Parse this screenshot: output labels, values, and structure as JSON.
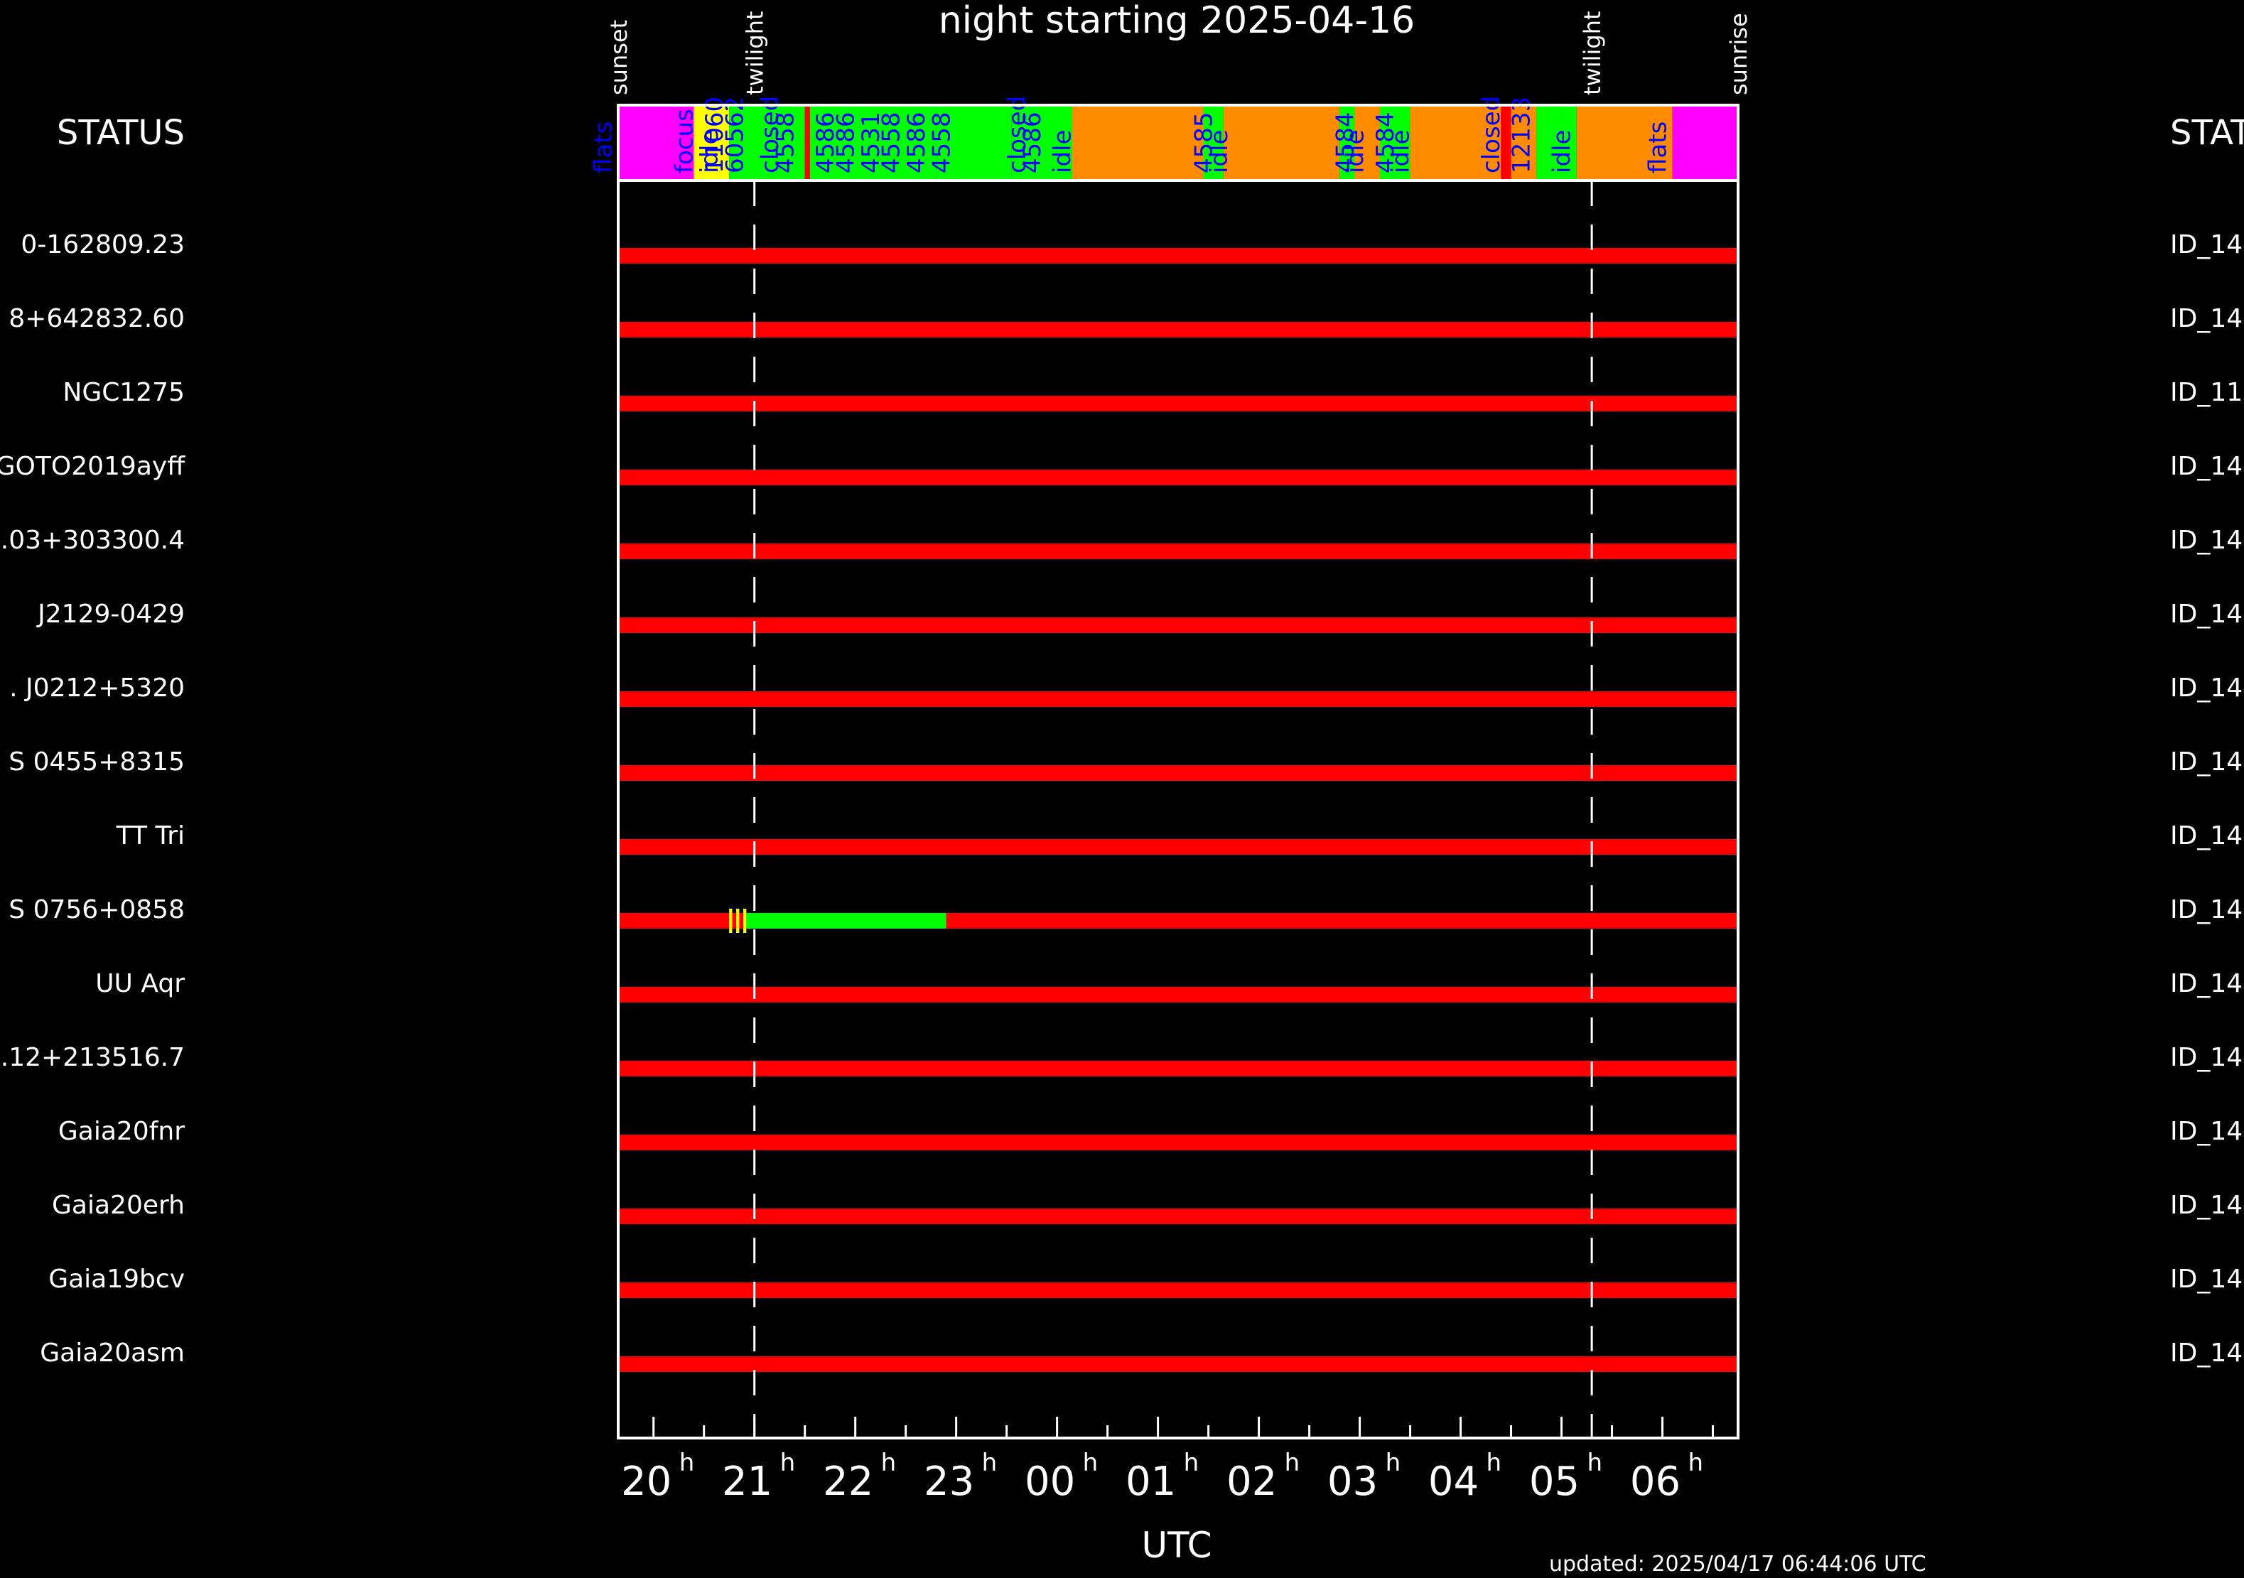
{
  "chart_data": {
    "type": "gantt",
    "title": "night starting 2025-04-16",
    "xlabel": "UTC",
    "updated": "updated: 2025/04/17 06:44:06 UTC",
    "status_header": "STATUS",
    "status_header_right": "STAT",
    "x_range_hours": [
      19.65,
      30.75
    ],
    "x_ticks": [
      {
        "hour": 20,
        "label": "20"
      },
      {
        "hour": 21,
        "label": "21"
      },
      {
        "hour": 22,
        "label": "22"
      },
      {
        "hour": 23,
        "label": "23"
      },
      {
        "hour": 24,
        "label": "00"
      },
      {
        "hour": 25,
        "label": "01"
      },
      {
        "hour": 26,
        "label": "02"
      },
      {
        "hour": 27,
        "label": "03"
      },
      {
        "hour": 28,
        "label": "04"
      },
      {
        "hour": 29,
        "label": "05"
      },
      {
        "hour": 30,
        "label": "06"
      }
    ],
    "hour_superscript": "h",
    "events": [
      {
        "name": "sunset",
        "hour": 19.65
      },
      {
        "name": "twilight",
        "hour": 21.0,
        "dashed": true
      },
      {
        "name": "twilight",
        "hour": 29.3,
        "dashed": true
      },
      {
        "name": "sunrise",
        "hour": 30.75
      }
    ],
    "status_segments": [
      {
        "start": 19.65,
        "end": 20.4,
        "color": "#ff00ff"
      },
      {
        "start": 20.4,
        "end": 20.75,
        "color": "#ffff00"
      },
      {
        "start": 20.75,
        "end": 21.15,
        "color": "#00ff00"
      },
      {
        "start": 21.15,
        "end": 21.5,
        "color": "#00ff00"
      },
      {
        "start": 21.5,
        "end": 21.55,
        "color": "#ff0000"
      },
      {
        "start": 21.55,
        "end": 22.45,
        "color": "#00ff00"
      },
      {
        "start": 22.45,
        "end": 22.8,
        "color": "#00ff00"
      },
      {
        "start": 22.8,
        "end": 23.55,
        "color": "#00ff00"
      },
      {
        "start": 23.55,
        "end": 24.15,
        "color": "#00ff00"
      },
      {
        "start": 24.15,
        "end": 25.45,
        "color": "#ff8c00"
      },
      {
        "start": 25.45,
        "end": 25.65,
        "color": "#00ff00"
      },
      {
        "start": 25.65,
        "end": 26.8,
        "color": "#ff8c00"
      },
      {
        "start": 26.8,
        "end": 26.95,
        "color": "#00ff00"
      },
      {
        "start": 26.95,
        "end": 27.2,
        "color": "#ff8c00"
      },
      {
        "start": 27.2,
        "end": 27.5,
        "color": "#00ff00"
      },
      {
        "start": 27.5,
        "end": 28.4,
        "color": "#ff8c00"
      },
      {
        "start": 28.4,
        "end": 28.5,
        "color": "#ff0000"
      },
      {
        "start": 28.5,
        "end": 28.75,
        "color": "#ff8c00"
      },
      {
        "start": 28.75,
        "end": 29.0,
        "color": "#00ff00"
      },
      {
        "start": 29.0,
        "end": 29.15,
        "color": "#00ff00"
      },
      {
        "start": 29.15,
        "end": 30.1,
        "color": "#ff8c00"
      },
      {
        "start": 30.1,
        "end": 30.75,
        "color": "#ff00ff"
      }
    ],
    "status_labels": [
      {
        "text": "flats",
        "hour": 19.5
      },
      {
        "text": "focus",
        "hour": 20.3
      },
      {
        "text": "idle",
        "hour": 20.55
      },
      {
        "text": "11060",
        "hour": 20.6
      },
      {
        "text": "60562",
        "hour": 20.8
      },
      {
        "text": "closed",
        "hour": 21.15
      },
      {
        "text": "4558",
        "hour": 21.3
      },
      {
        "text": "4586",
        "hour": 21.7
      },
      {
        "text": "4586",
        "hour": 21.9
      },
      {
        "text": "4531",
        "hour": 22.15
      },
      {
        "text": "4558",
        "hour": 22.35
      },
      {
        "text": "4586",
        "hour": 22.6
      },
      {
        "text": "4558",
        "hour": 22.85
      },
      {
        "text": "closed",
        "hour": 23.6
      },
      {
        "text": "4586",
        "hour": 23.75
      },
      {
        "text": "idle",
        "hour": 24.05
      },
      {
        "text": "4585",
        "hour": 25.45
      },
      {
        "text": "idle",
        "hour": 25.6
      },
      {
        "text": "4584",
        "hour": 26.85
      },
      {
        "text": "idle",
        "hour": 26.95
      },
      {
        "text": "4584",
        "hour": 27.25
      },
      {
        "text": "idle",
        "hour": 27.4
      },
      {
        "text": "closed",
        "hour": 28.3
      },
      {
        "text": "12133",
        "hour": 28.6
      },
      {
        "text": "idle",
        "hour": 29.0
      },
      {
        "text": "flats",
        "hour": 29.95
      }
    ],
    "rows": [
      {
        "left": "0-162809.23",
        "right": "ID_14"
      },
      {
        "left": "8+642832.60",
        "right": "ID_14"
      },
      {
        "left": "NGC1275",
        "right": "ID_11"
      },
      {
        "left": "GOTO2019ayff",
        "right": "ID_14"
      },
      {
        "left": ".03+303300.4",
        "right": "ID_14"
      },
      {
        "left": "J2129-0429",
        "right": "ID_14"
      },
      {
        "left": ". J0212+5320",
        "right": "ID_14"
      },
      {
        "left": "S 0455+8315",
        "right": "ID_14"
      },
      {
        "left": "TT Tri",
        "right": "ID_14"
      },
      {
        "left": "S 0756+0858",
        "right": "ID_14"
      },
      {
        "left": "UU Aqr",
        "right": "ID_14"
      },
      {
        "left": ".12+213516.7",
        "right": "ID_14"
      },
      {
        "left": "Gaia20fnr",
        "right": "ID_14"
      },
      {
        "left": "Gaia20erh",
        "right": "ID_14"
      },
      {
        "left": "Gaia19bcv",
        "right": "ID_14"
      },
      {
        "left": "Gaia20asm",
        "right": "ID_14"
      }
    ],
    "row_segments": [
      {
        "row": 9,
        "start": 20.75,
        "end": 20.78,
        "color": "#ffff00"
      },
      {
        "row": 9,
        "start": 20.82,
        "end": 20.85,
        "color": "#ffff00"
      },
      {
        "row": 9,
        "start": 20.89,
        "end": 20.92,
        "color": "#ffff00"
      },
      {
        "row": 9,
        "start": 20.92,
        "end": 22.9,
        "color": "#00ff00"
      }
    ],
    "colors": {
      "background": "#000000",
      "unobservable": "#ff0000",
      "observed": "#00ff00",
      "status_text": "#0000ff",
      "frame": "#ffffff"
    }
  }
}
